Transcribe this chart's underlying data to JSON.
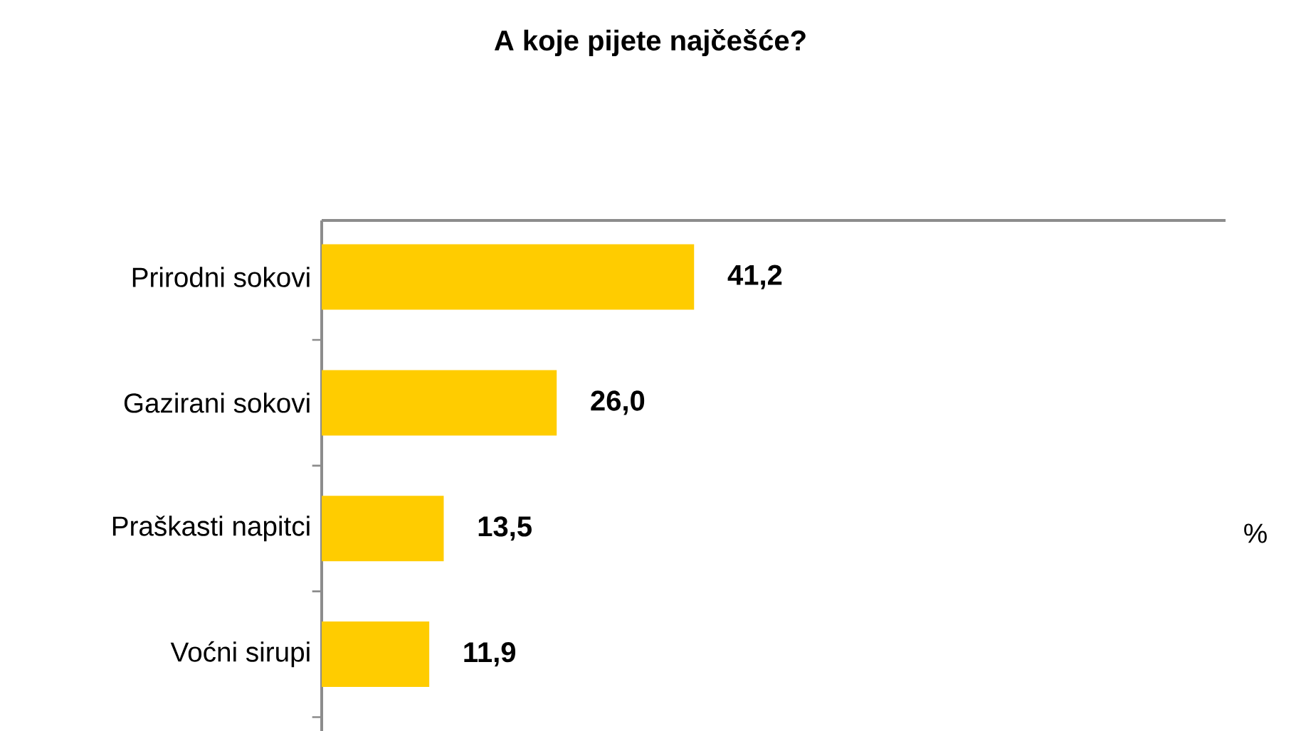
{
  "chart_data": {
    "type": "bar",
    "orientation": "horizontal",
    "title": "A koje pijete najčešće?",
    "categories": [
      "Prirodni sokovi",
      "Gazirani sokovi",
      "Praškasti napitci",
      "Voćni sirupi"
    ],
    "values": [
      41.2,
      26.0,
      13.5,
      11.9
    ],
    "value_labels": [
      "41,2",
      "26,0",
      "13,5",
      "11,9"
    ],
    "color": "#ffcc00",
    "xlim": [
      0,
      100
    ],
    "tick_labels": "y",
    "annotations": [
      "%"
    ]
  }
}
